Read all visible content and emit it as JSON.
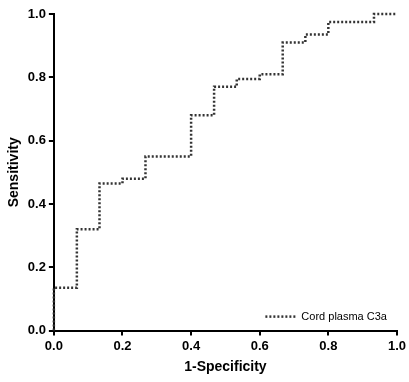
{
  "chart_data": {
    "type": "line",
    "x_label": "1-Specificity",
    "y_label": "Sensitivity",
    "x": [
      0,
      0,
      0.067,
      0.067,
      0.133,
      0.133,
      0.2,
      0.2,
      0.267,
      0.267,
      0.4,
      0.4,
      0.467,
      0.467,
      0.533,
      0.533,
      0.6,
      0.6,
      0.667,
      0.667,
      0.733,
      0.733,
      0.8,
      0.8,
      0.933,
      0.933,
      1.0
    ],
    "series": [
      {
        "name": "Cord plasma C3a",
        "color": "#333333",
        "line_style": "dotted",
        "values": [
          0,
          0.135,
          0.135,
          0.32,
          0.32,
          0.465,
          0.465,
          0.48,
          0.48,
          0.55,
          0.55,
          0.68,
          0.68,
          0.77,
          0.77,
          0.795,
          0.795,
          0.81,
          0.81,
          0.91,
          0.91,
          0.935,
          0.935,
          0.975,
          0.975,
          1.0,
          1.0
        ]
      }
    ],
    "xlim": [
      0,
      1
    ],
    "ylim": [
      0,
      1
    ],
    "xticks": [
      {
        "value": 0,
        "label": "0.0"
      },
      {
        "value": 0.2,
        "label": "0.2"
      },
      {
        "value": 0.4,
        "label": "0.4"
      },
      {
        "value": 0.6,
        "label": "0.6"
      },
      {
        "value": 0.8,
        "label": "0.8"
      },
      {
        "value": 1,
        "label": "1.0"
      }
    ],
    "yticks": [
      {
        "value": 0,
        "label": "0.0"
      },
      {
        "value": 0.2,
        "label": "0.2"
      },
      {
        "value": 0.4,
        "label": "0.4"
      },
      {
        "value": 0.6,
        "label": "0.6"
      },
      {
        "value": 0.8,
        "label": "0.8"
      },
      {
        "value": 1,
        "label": "1.0"
      }
    ],
    "grid": false,
    "legend": "lower right"
  }
}
